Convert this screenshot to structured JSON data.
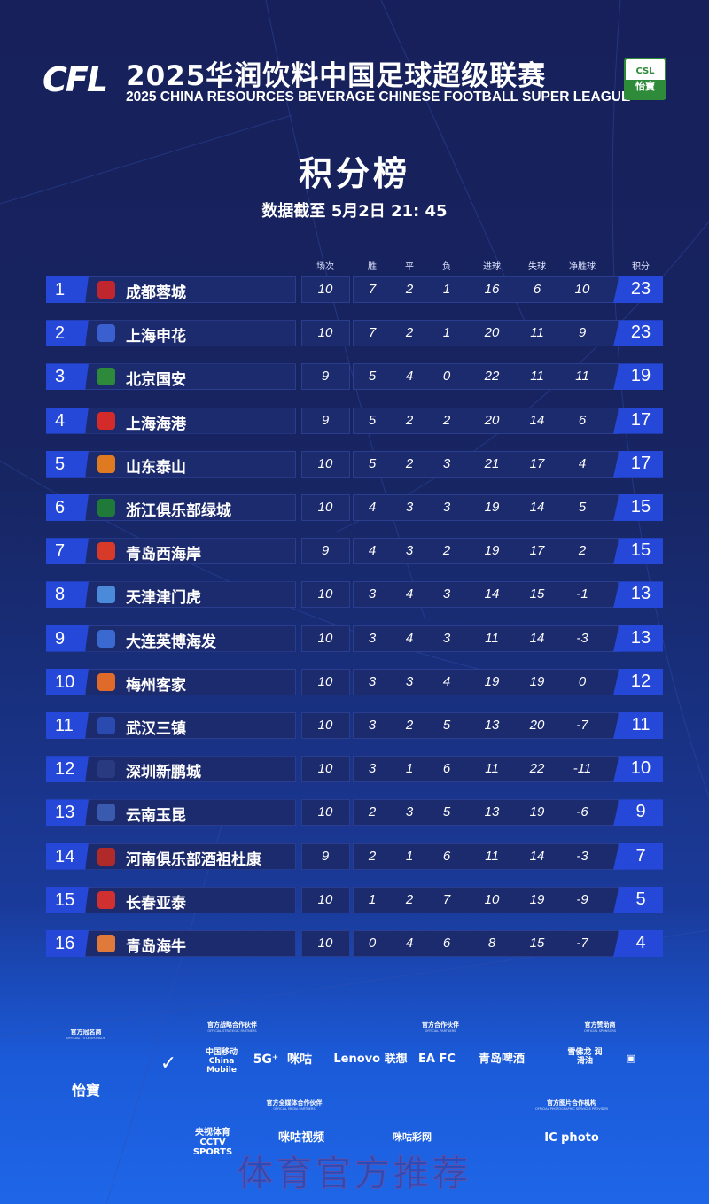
{
  "header": {
    "logo": "CFL",
    "title_cn": "2025华润饮料中国足球超级联赛",
    "title_en": "2025 CHINA RESOURCES BEVERAGE CHINESE FOOTBALL SUPER LEAGUE",
    "badge": "CSL",
    "badge_sponsor": "怡寶"
  },
  "page_title": "积分榜",
  "date_line": "数据截至 5月2日 21: 45",
  "columns": [
    "场次",
    "胜",
    "平",
    "负",
    "进球",
    "失球",
    "净胜球",
    "积分"
  ],
  "colors": {
    "accent": "#2648d8",
    "row_bg": "#1c2a6e"
  },
  "teams": [
    {
      "rank": "1",
      "name": "成都蓉城",
      "crest": "#c0262d",
      "p": "10",
      "w": "7",
      "d": "2",
      "l": "1",
      "gf": "16",
      "ga": "6",
      "gd": "10",
      "pts": "23"
    },
    {
      "rank": "2",
      "name": "上海申花",
      "crest": "#3a5fcf",
      "p": "10",
      "w": "7",
      "d": "2",
      "l": "1",
      "gf": "20",
      "ga": "11",
      "gd": "9",
      "pts": "23"
    },
    {
      "rank": "3",
      "name": "北京国安",
      "crest": "#2d8a3a",
      "p": "9",
      "w": "5",
      "d": "4",
      "l": "0",
      "gf": "22",
      "ga": "11",
      "gd": "11",
      "pts": "19"
    },
    {
      "rank": "4",
      "name": "上海海港",
      "crest": "#d42a2a",
      "p": "9",
      "w": "5",
      "d": "2",
      "l": "2",
      "gf": "20",
      "ga": "14",
      "gd": "6",
      "pts": "17"
    },
    {
      "rank": "5",
      "name": "山东泰山",
      "crest": "#e07a20",
      "p": "10",
      "w": "5",
      "d": "2",
      "l": "3",
      "gf": "21",
      "ga": "17",
      "gd": "4",
      "pts": "17"
    },
    {
      "rank": "6",
      "name": "浙江俱乐部绿城",
      "crest": "#1f7a3a",
      "p": "10",
      "w": "4",
      "d": "3",
      "l": "3",
      "gf": "19",
      "ga": "14",
      "gd": "5",
      "pts": "15"
    },
    {
      "rank": "7",
      "name": "青岛西海岸",
      "crest": "#d83a2a",
      "p": "9",
      "w": "4",
      "d": "3",
      "l": "2",
      "gf": "19",
      "ga": "17",
      "gd": "2",
      "pts": "15"
    },
    {
      "rank": "8",
      "name": "天津津门虎",
      "crest": "#4a8ad8",
      "p": "10",
      "w": "3",
      "d": "4",
      "l": "3",
      "gf": "14",
      "ga": "15",
      "gd": "-1",
      "pts": "13"
    },
    {
      "rank": "9",
      "name": "大连英博海发",
      "crest": "#3a6ad0",
      "p": "10",
      "w": "3",
      "d": "4",
      "l": "3",
      "gf": "11",
      "ga": "14",
      "gd": "-3",
      "pts": "13"
    },
    {
      "rank": "10",
      "name": "梅州客家",
      "crest": "#e06a2a",
      "p": "10",
      "w": "3",
      "d": "3",
      "l": "4",
      "gf": "19",
      "ga": "19",
      "gd": "0",
      "pts": "12"
    },
    {
      "rank": "11",
      "name": "武汉三镇",
      "crest": "#2a4ab0",
      "p": "10",
      "w": "3",
      "d": "2",
      "l": "5",
      "gf": "13",
      "ga": "20",
      "gd": "-7",
      "pts": "11"
    },
    {
      "rank": "12",
      "name": "深圳新鹏城",
      "crest": "#2a3a80",
      "p": "10",
      "w": "3",
      "d": "1",
      "l": "6",
      "gf": "11",
      "ga": "22",
      "gd": "-11",
      "pts": "10"
    },
    {
      "rank": "13",
      "name": "云南玉昆",
      "crest": "#3a5ab0",
      "p": "10",
      "w": "2",
      "d": "3",
      "l": "5",
      "gf": "13",
      "ga": "19",
      "gd": "-6",
      "pts": "9"
    },
    {
      "rank": "14",
      "name": "河南俱乐部酒祖杜康",
      "crest": "#b02a2a",
      "p": "9",
      "w": "2",
      "d": "1",
      "l": "6",
      "gf": "11",
      "ga": "14",
      "gd": "-3",
      "pts": "7"
    },
    {
      "rank": "15",
      "name": "长春亚泰",
      "crest": "#d03030",
      "p": "10",
      "w": "1",
      "d": "2",
      "l": "7",
      "gf": "10",
      "ga": "19",
      "gd": "-9",
      "pts": "5"
    },
    {
      "rank": "16",
      "name": "青岛海牛",
      "crest": "#e07a3a",
      "p": "10",
      "w": "0",
      "d": "4",
      "l": "6",
      "gf": "8",
      "ga": "15",
      "gd": "-7",
      "pts": "4"
    }
  ],
  "sponsors": {
    "title": {
      "cn": "官方冠名商",
      "en": "OFFICIAL TITLE SPONSOR",
      "logos": [
        "怡寶"
      ]
    },
    "strategic": {
      "cn": "官方战略合作伙伴",
      "en": "OFFICIAL STRATEGIC PARTNERS",
      "logos": [
        "✓",
        "中国移动 China Mobile",
        "5G⁺",
        "咪咕"
      ]
    },
    "partners": {
      "cn": "官方合作伙伴",
      "en": "OFFICIAL PARTNERS",
      "logos": [
        "Lenovo 联想",
        "EA FC",
        "青岛啤酒"
      ]
    },
    "sponsors": {
      "cn": "官方赞助商",
      "en": "OFFICIAL SPONSORS",
      "logos": [
        "雪佛龙 润滑油",
        "▣"
      ]
    },
    "media": {
      "cn": "官方全媒体合作伙伴",
      "en": "OFFICIAL MEDIA PARTNERS",
      "logos": [
        "央视体育 CCTV SPORTS",
        "咪咕视频",
        "咪咕彩网"
      ]
    },
    "photo": {
      "cn": "官方图片合作机构",
      "en": "OFFICIAL PHOTOGRAPHIC SERVICES PROVIDER",
      "logos": [
        "IC photo"
      ]
    }
  },
  "watermark": "体育官方推荐"
}
